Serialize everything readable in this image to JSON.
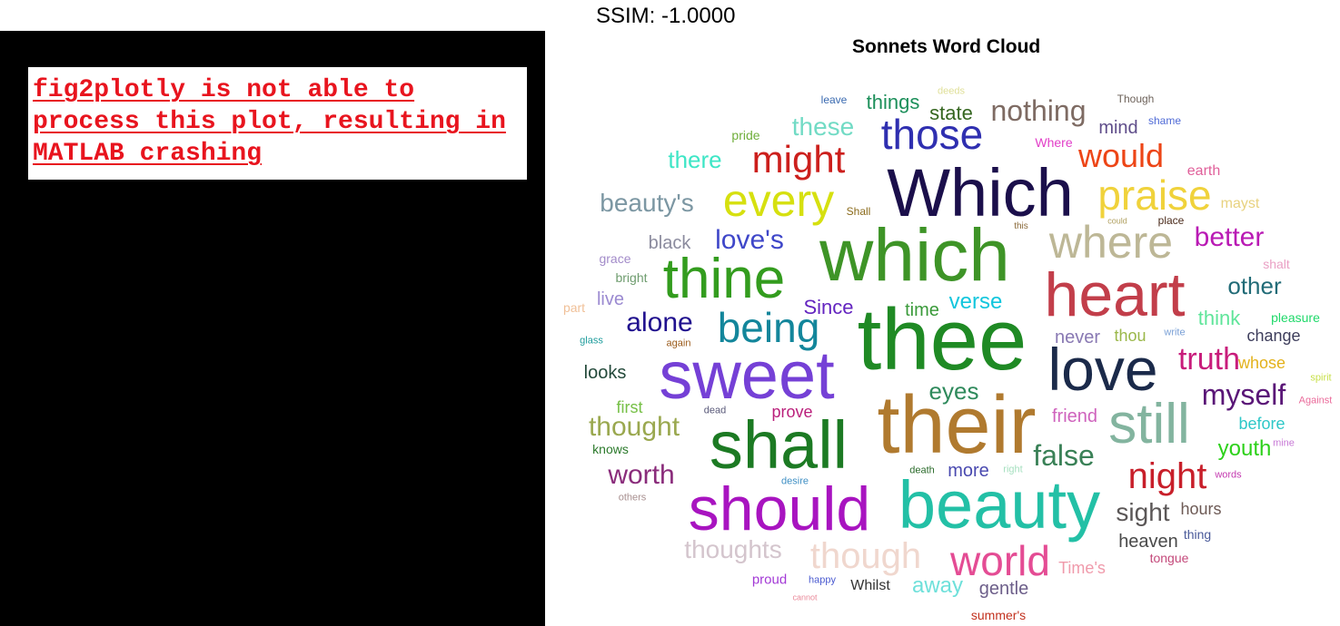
{
  "status": {
    "ssim_label": "SSIM: -1.0000"
  },
  "error_panel": {
    "message": "fig2plotly is not able to process this plot, resulting in MATLAB crashing",
    "text_color": "#e8141e",
    "background": "#000000"
  },
  "chart_data": {
    "type": "wordcloud",
    "title": "Sonnets Word Cloud",
    "words": [
      {
        "text": "Which",
        "weight": 74,
        "color": "#1b0f4b"
      },
      {
        "text": "which",
        "weight": 82,
        "color": "#3e9427"
      },
      {
        "text": "thee",
        "weight": 96,
        "color": "#1f8a24"
      },
      {
        "text": "their",
        "weight": 90,
        "color": "#b07a2f"
      },
      {
        "text": "sweet",
        "weight": 74,
        "color": "#7540d6"
      },
      {
        "text": "shall",
        "weight": 74,
        "color": "#1c7a23"
      },
      {
        "text": "beauty",
        "weight": 74,
        "color": "#23c0a6"
      },
      {
        "text": "should",
        "weight": 68,
        "color": "#a814c0"
      },
      {
        "text": "heart",
        "weight": 68,
        "color": "#c23e4a"
      },
      {
        "text": "love",
        "weight": 66,
        "color": "#1b2a4a"
      },
      {
        "text": "thine",
        "weight": 62,
        "color": "#339c1e"
      },
      {
        "text": "still",
        "weight": 62,
        "color": "#83b49f"
      },
      {
        "text": "where",
        "weight": 50,
        "color": "#bdb796"
      },
      {
        "text": "every",
        "weight": 50,
        "color": "#d6e00f"
      },
      {
        "text": "praise",
        "weight": 46,
        "color": "#f0d23b"
      },
      {
        "text": "those",
        "weight": 46,
        "color": "#2f2fb0"
      },
      {
        "text": "being",
        "weight": 46,
        "color": "#13869b"
      },
      {
        "text": "world",
        "weight": 46,
        "color": "#e44c94"
      },
      {
        "text": "though",
        "weight": 40,
        "color": "#f0d7ce"
      },
      {
        "text": "night",
        "weight": 40,
        "color": "#c81f2a"
      },
      {
        "text": "might",
        "weight": 42,
        "color": "#cc1f1c"
      },
      {
        "text": "would",
        "weight": 36,
        "color": "#ed4516"
      },
      {
        "text": "nothing",
        "weight": 32,
        "color": "#7e6b63"
      },
      {
        "text": "truth",
        "weight": 34,
        "color": "#c81c7b"
      },
      {
        "text": "myself",
        "weight": 32,
        "color": "#5a1677"
      },
      {
        "text": "false",
        "weight": 32,
        "color": "#3a8157"
      },
      {
        "text": "thought",
        "weight": 30,
        "color": "#9aa84f"
      },
      {
        "text": "worth",
        "weight": 30,
        "color": "#8a2c7b"
      },
      {
        "text": "alone",
        "weight": 30,
        "color": "#20108e"
      },
      {
        "text": "love's",
        "weight": 30,
        "color": "#3f47c9"
      },
      {
        "text": "better",
        "weight": 30,
        "color": "#b91ab4"
      },
      {
        "text": "thoughts",
        "weight": 28,
        "color": "#d4c5cd"
      },
      {
        "text": "beauty's",
        "weight": 28,
        "color": "#7c97a3"
      },
      {
        "text": "these",
        "weight": 28,
        "color": "#72dbc5"
      },
      {
        "text": "sight",
        "weight": 28,
        "color": "#5b5757"
      },
      {
        "text": "eyes",
        "weight": 26,
        "color": "#2f8a5c"
      },
      {
        "text": "other",
        "weight": 26,
        "color": "#216b77"
      },
      {
        "text": "there",
        "weight": 26,
        "color": "#3ee6c6"
      },
      {
        "text": "away",
        "weight": 24,
        "color": "#6ee0da"
      },
      {
        "text": "verse",
        "weight": 24,
        "color": "#12c6dd"
      },
      {
        "text": "youth",
        "weight": 24,
        "color": "#2dd11a"
      },
      {
        "text": "Since",
        "weight": 22,
        "color": "#6425c0"
      },
      {
        "text": "things",
        "weight": 22,
        "color": "#1c8f5a"
      },
      {
        "text": "state",
        "weight": 22,
        "color": "#356620"
      },
      {
        "text": "think",
        "weight": 22,
        "color": "#5fe59a"
      },
      {
        "text": "black",
        "weight": 20,
        "color": "#8b8b9e"
      },
      {
        "text": "looks",
        "weight": 20,
        "color": "#244a3b"
      },
      {
        "text": "time",
        "weight": 20,
        "color": "#3a9a3a"
      },
      {
        "text": "never",
        "weight": 20,
        "color": "#8979b3"
      },
      {
        "text": "mind",
        "weight": 20,
        "color": "#5f4d8a"
      },
      {
        "text": "friend",
        "weight": 20,
        "color": "#cf63bd"
      },
      {
        "text": "heaven",
        "weight": 20,
        "color": "#4a4a4a"
      },
      {
        "text": "gentle",
        "weight": 20,
        "color": "#6d5f8a"
      },
      {
        "text": "more",
        "weight": 20,
        "color": "#4a4ab0"
      },
      {
        "text": "live",
        "weight": 20,
        "color": "#9b8ad1"
      },
      {
        "text": "first",
        "weight": 18,
        "color": "#76c046"
      },
      {
        "text": "prove",
        "weight": 18,
        "color": "#ba1f7b"
      },
      {
        "text": "thou",
        "weight": 18,
        "color": "#9bb84a"
      },
      {
        "text": "hours",
        "weight": 18,
        "color": "#6d5a55"
      },
      {
        "text": "change",
        "weight": 18,
        "color": "#3e3e5c"
      },
      {
        "text": "whose",
        "weight": 18,
        "color": "#e3b21c"
      },
      {
        "text": "before",
        "weight": 18,
        "color": "#2ec8c8"
      },
      {
        "text": "Time's",
        "weight": 18,
        "color": "#f09aab"
      },
      {
        "text": "Whilst",
        "weight": 16,
        "color": "#333333"
      },
      {
        "text": "mayst",
        "weight": 16,
        "color": "#e8d27f"
      },
      {
        "text": "earth",
        "weight": 16,
        "color": "#e0609a"
      },
      {
        "text": "proud",
        "weight": 15,
        "color": "#a33ad6"
      },
      {
        "text": "pride",
        "weight": 14,
        "color": "#6fae3a"
      },
      {
        "text": "Where",
        "weight": 14,
        "color": "#e23ec8"
      },
      {
        "text": "pleasure",
        "weight": 14,
        "color": "#1fd96a"
      },
      {
        "text": "knows",
        "weight": 14,
        "color": "#2c7a2c"
      },
      {
        "text": "grace",
        "weight": 14,
        "color": "#a28bc9"
      },
      {
        "text": "bright",
        "weight": 14,
        "color": "#6e9c6e"
      },
      {
        "text": "part",
        "weight": 14,
        "color": "#f0c098"
      },
      {
        "text": "thing",
        "weight": 14,
        "color": "#4a5a9a"
      },
      {
        "text": "tongue",
        "weight": 14,
        "color": "#c44a7b"
      },
      {
        "text": "shalt",
        "weight": 14,
        "color": "#ea9fc4"
      },
      {
        "text": "summer's",
        "weight": 14,
        "color": "#c2311e"
      },
      {
        "text": "Though",
        "weight": 12,
        "color": "#6d625a"
      },
      {
        "text": "shame",
        "weight": 12,
        "color": "#4f6ad6"
      },
      {
        "text": "leave",
        "weight": 12,
        "color": "#3a6ab0"
      },
      {
        "text": "Shall",
        "weight": 12,
        "color": "#8a6a1a"
      },
      {
        "text": "place",
        "weight": 12,
        "color": "#4a2a1a"
      },
      {
        "text": "glass",
        "weight": 11,
        "color": "#1e9c9c"
      },
      {
        "text": "again",
        "weight": 11,
        "color": "#9a5a1a"
      },
      {
        "text": "dead",
        "weight": 11,
        "color": "#5a5a7a"
      },
      {
        "text": "others",
        "weight": 11,
        "color": "#a89090"
      },
      {
        "text": "desire",
        "weight": 11,
        "color": "#3f8fc4"
      },
      {
        "text": "death",
        "weight": 11,
        "color": "#2a6a2a"
      },
      {
        "text": "right",
        "weight": 11,
        "color": "#a6e0c0"
      },
      {
        "text": "happy",
        "weight": 11,
        "color": "#4a5ad0"
      },
      {
        "text": "words",
        "weight": 11,
        "color": "#c43ab0"
      },
      {
        "text": "write",
        "weight": 11,
        "color": "#7aa0d6"
      },
      {
        "text": "mine",
        "weight": 11,
        "color": "#c87ad6"
      },
      {
        "text": "spirit",
        "weight": 11,
        "color": "#c8e04a"
      },
      {
        "text": "Against",
        "weight": 11,
        "color": "#ea6a9a"
      },
      {
        "text": "deeds",
        "weight": 11,
        "color": "#e0e09a"
      },
      {
        "text": "this",
        "weight": 10,
        "color": "#8a6a3a"
      },
      {
        "text": "could",
        "weight": 9,
        "color": "#b0a060"
      },
      {
        "text": "cannot",
        "weight": 9,
        "color": "#ea8a9a"
      }
    ]
  }
}
